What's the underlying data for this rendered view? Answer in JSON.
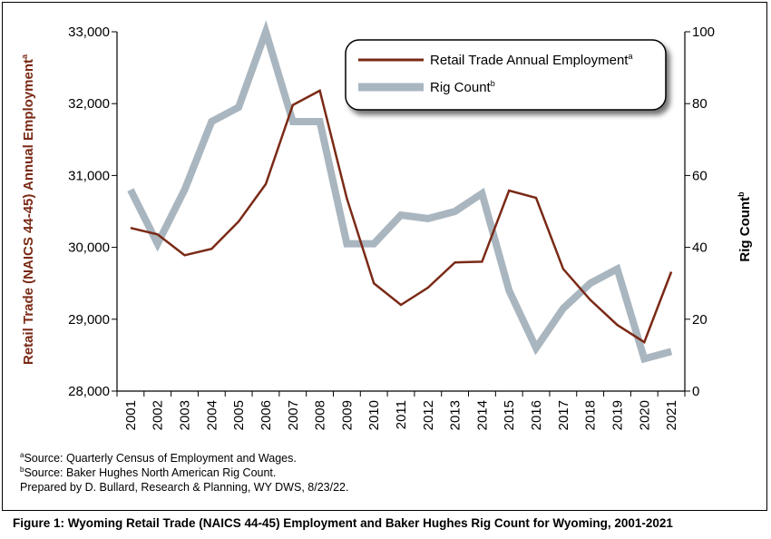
{
  "chart_data": {
    "type": "line",
    "title": "",
    "x": [
      "2001",
      "2002",
      "2003",
      "2004",
      "2005",
      "2006",
      "2007",
      "2008",
      "2009",
      "2010",
      "2011",
      "2012",
      "2013",
      "2014",
      "2015",
      "2016",
      "2017",
      "2018",
      "2019",
      "2020",
      "2021"
    ],
    "series": [
      {
        "name": "Retail Trade Annual Employment",
        "axis": "left",
        "color": "#7a2a16",
        "values": [
          30270,
          30180,
          29890,
          29980,
          30360,
          30880,
          31980,
          32180,
          30680,
          29500,
          29200,
          29440,
          29790,
          29800,
          30790,
          30690,
          29700,
          29270,
          28920,
          28680,
          29660
        ]
      },
      {
        "name": "Rig Count",
        "axis": "right",
        "color": "#a9b6c0",
        "values": [
          56,
          41,
          56,
          75,
          79,
          100,
          75,
          75,
          41,
          41,
          49,
          48,
          50,
          55,
          28,
          12,
          23,
          30,
          34,
          9,
          11
        ]
      }
    ],
    "ylabel_left": "Retail Trade (NAICS 44-45) Annual Employment",
    "ylabel_left_sup": "a",
    "ylabel_right": "Rig Count",
    "ylabel_right_sup": "b",
    "ylim_left": [
      28000,
      33000
    ],
    "ylim_right": [
      0,
      100
    ],
    "yticks_left": [
      "28,000",
      "29,000",
      "30,000",
      "31,000",
      "32,000",
      "33,000"
    ],
    "yticks_right": [
      "0",
      "20",
      "40",
      "60",
      "80",
      "100"
    ],
    "legend": {
      "placement": "top-right",
      "items": [
        {
          "label": "Retail Trade Annual Employment",
          "sup": "a"
        },
        {
          "label": "Rig Count",
          "sup": "b"
        }
      ]
    },
    "grid": false
  },
  "notes": {
    "source_a_sup": "a",
    "source_a": "Source: Quarterly Census of Employment and Wages.",
    "source_b_sup": "b",
    "source_b": "Source: Baker Hughes North American Rig Count.",
    "prepared": "Prepared by D. Bullard, Research & Planning, WY DWS, 8/23/22."
  },
  "caption": "Figure 1: Wyoming Retail Trade (NAICS 44-45) Employment and Baker Hughes Rig Count for Wyoming, 2001-2021"
}
